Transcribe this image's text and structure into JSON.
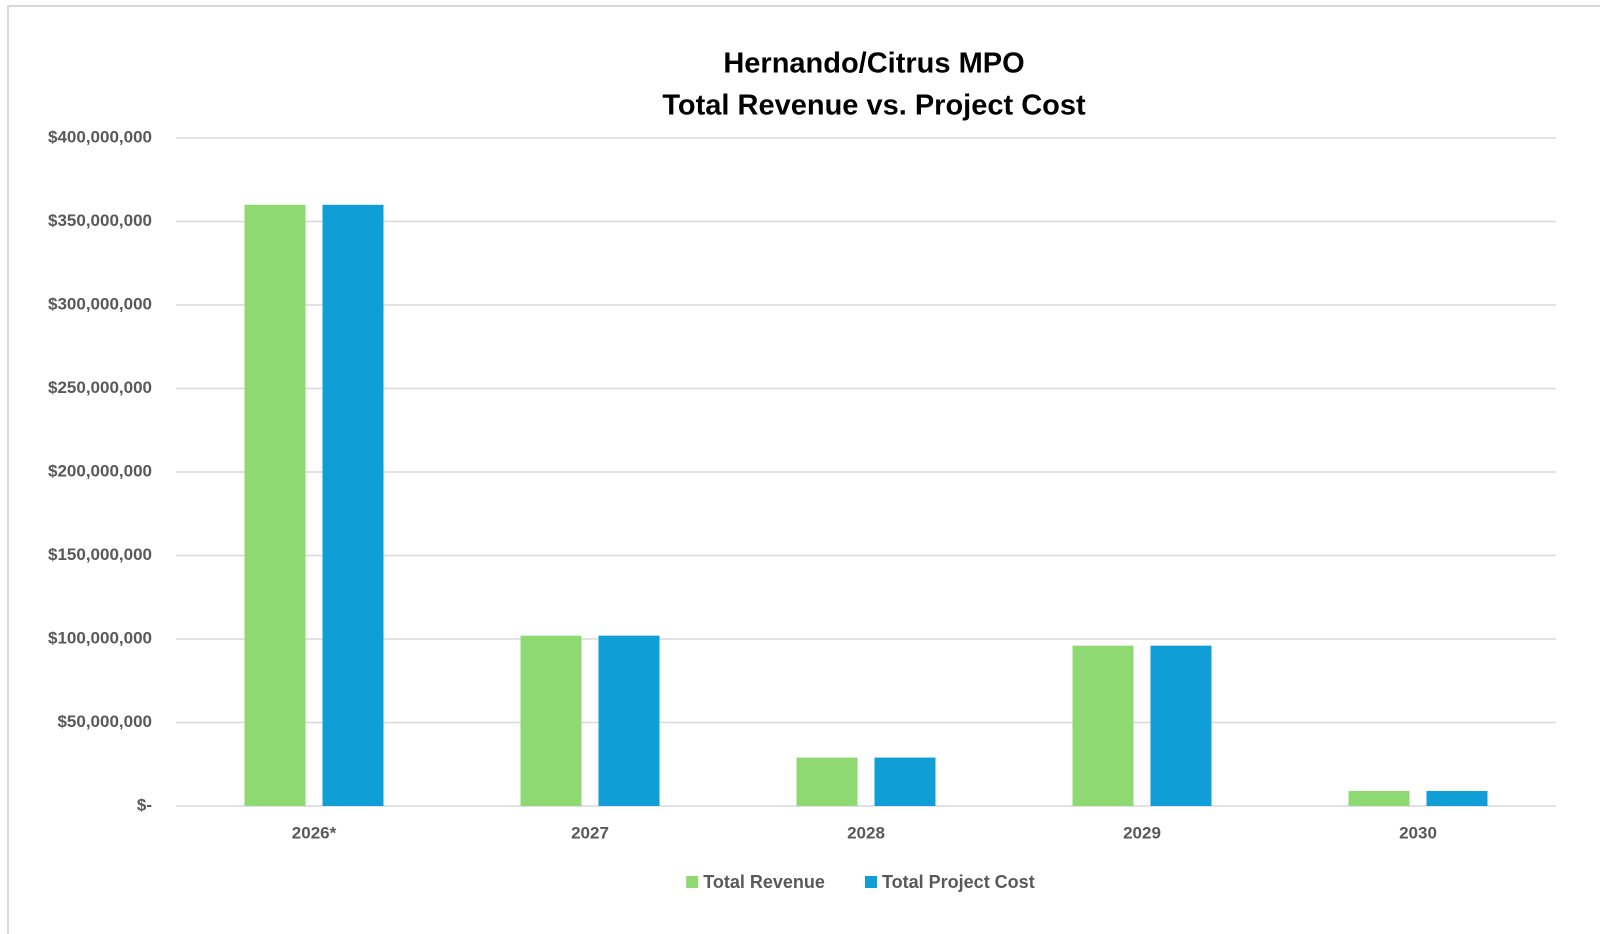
{
  "chart_data": {
    "type": "bar",
    "title": "Hernando/Citrus MPO",
    "subtitle": "Total Revenue vs. Project Cost",
    "categories": [
      "2026*",
      "2027",
      "2028",
      "2029",
      "2030"
    ],
    "series": [
      {
        "name": "Total Revenue",
        "color": "#8fd973",
        "values": [
          360000000,
          102000000,
          29000000,
          96000000,
          9000000
        ]
      },
      {
        "name": "Total Project Cost",
        "color": "#0f9ed5",
        "values": [
          360000000,
          102000000,
          29000000,
          96000000,
          9000000
        ]
      }
    ],
    "ylim": [
      0,
      400000000
    ],
    "yticks": [
      {
        "value": 0,
        "label": "$-"
      },
      {
        "value": 50000000,
        "label": "$50,000,000"
      },
      {
        "value": 100000000,
        "label": "$100,000,000"
      },
      {
        "value": 150000000,
        "label": "$150,000,000"
      },
      {
        "value": 200000000,
        "label": "$200,000,000"
      },
      {
        "value": 250000000,
        "label": "$250,000,000"
      },
      {
        "value": 300000000,
        "label": "$300,000,000"
      },
      {
        "value": 350000000,
        "label": "$350,000,000"
      },
      {
        "value": 400000000,
        "label": "$400,000,000"
      }
    ],
    "grid": true,
    "legend": "bottom"
  }
}
